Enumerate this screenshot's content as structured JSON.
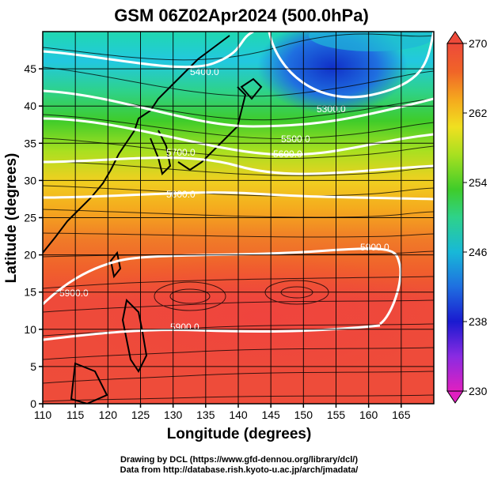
{
  "figure": {
    "title": "GSM 06Z02Apr2024 (500.0hPa)",
    "xlabel": "Longitude (degrees)",
    "ylabel": "Latitude  (degrees)",
    "credit_line1": "Drawing by DCL (https://www.gfd-dennou.org/library/dcl/)",
    "credit_line2": "Data from http://database.rish.kyoto-u.ac.jp/arch/jmadata/"
  },
  "chart_data": {
    "type": "heatmap",
    "description_fields": "filled temperature (K) with geopotential height contours (m) and wind streamlines",
    "x_range": [
      110,
      170
    ],
    "y_range": [
      0,
      50
    ],
    "x_ticks": [
      110,
      115,
      120,
      125,
      130,
      135,
      140,
      145,
      150,
      155,
      160,
      165
    ],
    "y_ticks": [
      0,
      5,
      10,
      15,
      20,
      25,
      30,
      35,
      40,
      45
    ],
    "colorbar": {
      "range": [
        230,
        270
      ],
      "tick_labels": [
        "270",
        "262",
        "254",
        "246",
        "238",
        "230"
      ],
      "extend": "both",
      "colors": [
        "#e020c0",
        "#8a2be2",
        "#1a1ad0",
        "#1f6fe0",
        "#18b8d8",
        "#2ed28a",
        "#3fcc2a",
        "#a8e020",
        "#f0e020",
        "#f5a81e",
        "#f06428",
        "#ee4a3a"
      ]
    },
    "contours": [
      {
        "label": "5400.0",
        "lat_at_130": 46
      },
      {
        "label": "5300.0",
        "lat_at_150": 40.5
      },
      {
        "label": "5500.0",
        "lat_at_148": 37
      },
      {
        "label": "5600.0",
        "lat_at_148": 35.5
      },
      {
        "label": "5700.0",
        "lat_at_128": 35
      },
      {
        "label": "5800.0",
        "lat_at_130": 30
      },
      {
        "label": "5900.0",
        "lat_at_155": 22
      },
      {
        "label": "5900.0",
        "lat_at_116": 16
      },
      {
        "label": "5900.0",
        "lat_at_130": 11
      }
    ],
    "grid": true
  }
}
